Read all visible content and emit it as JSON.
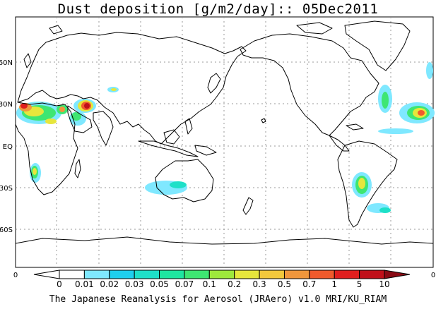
{
  "title": "Dust deposition [g/m2/day]:: 05Dec2011",
  "footer": "The Japanese Reanalysis for Aerosol (JRAero) v1.0 MRI/KU_RIAM",
  "lat_labels": [
    "60N",
    "30N",
    "EQ",
    "30S",
    "60S"
  ],
  "lon_labels": [
    "0",
    "0"
  ],
  "colorbar": {
    "levels": [
      "0",
      "0.01",
      "0.02",
      "0.03",
      "0.05",
      "0.07",
      "0.1",
      "0.2",
      "0.3",
      "0.5",
      "0.7",
      "1",
      "5",
      "10"
    ],
    "colors": [
      "#ffffff",
      "#ffffff",
      "#7fe8ff",
      "#1ecfee",
      "#1ee0c8",
      "#1ee6a0",
      "#3ee672",
      "#9ee83c",
      "#e6e63c",
      "#f2c83c",
      "#f0963c",
      "#f05a2c",
      "#e01e1e",
      "#c0101a",
      "#8a0a14"
    ]
  },
  "colors": {
    "coast": "#000000",
    "grid": "#999999",
    "plume_low": "#7fe8ff",
    "plume_mid": "#3ee672",
    "plume_high": "#e6e63c",
    "plume_peak": "#e01e1e"
  }
}
